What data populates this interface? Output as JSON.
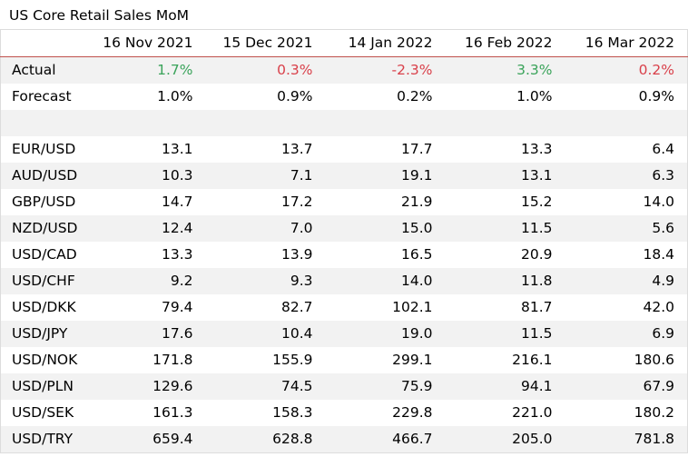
{
  "title": "US Core Retail Sales MoM",
  "colors": {
    "positive": "#3aa35a",
    "negative": "#d9404a",
    "header_rule": "#c0504d",
    "band": "#f2f2f2"
  },
  "chart_data": {
    "type": "table",
    "title": "US Core Retail Sales MoM",
    "columns": [
      "16 Nov 2021",
      "15 Dec 2021",
      "14 Jan 2022",
      "16 Feb 2022",
      "16 Mar 2022"
    ],
    "actual": {
      "label": "Actual",
      "values": [
        "1.7%",
        "0.3%",
        "-2.3%",
        "3.3%",
        "0.2%"
      ],
      "colors": [
        "positive",
        "negative",
        "negative",
        "positive",
        "negative"
      ]
    },
    "forecast": {
      "label": "Forecast",
      "values": [
        "1.0%",
        "0.9%",
        "0.2%",
        "1.0%",
        "0.9%"
      ]
    },
    "rows": [
      {
        "label": "EUR/USD",
        "values": [
          "13.1",
          "13.7",
          "17.7",
          "13.3",
          "6.4"
        ]
      },
      {
        "label": "AUD/USD",
        "values": [
          "10.3",
          "7.1",
          "19.1",
          "13.1",
          "6.3"
        ]
      },
      {
        "label": "GBP/USD",
        "values": [
          "14.7",
          "17.2",
          "21.9",
          "15.2",
          "14.0"
        ]
      },
      {
        "label": "NZD/USD",
        "values": [
          "12.4",
          "7.0",
          "15.0",
          "11.5",
          "5.6"
        ]
      },
      {
        "label": "USD/CAD",
        "values": [
          "13.3",
          "13.9",
          "16.5",
          "20.9",
          "18.4"
        ]
      },
      {
        "label": "USD/CHF",
        "values": [
          "9.2",
          "9.3",
          "14.0",
          "11.8",
          "4.9"
        ]
      },
      {
        "label": "USD/DKK",
        "values": [
          "79.4",
          "82.7",
          "102.1",
          "81.7",
          "42.0"
        ]
      },
      {
        "label": "USD/JPY",
        "values": [
          "17.6",
          "10.4",
          "19.0",
          "11.5",
          "6.9"
        ]
      },
      {
        "label": "USD/NOK",
        "values": [
          "171.8",
          "155.9",
          "299.1",
          "216.1",
          "180.6"
        ]
      },
      {
        "label": "USD/PLN",
        "values": [
          "129.6",
          "74.5",
          "75.9",
          "94.1",
          "67.9"
        ]
      },
      {
        "label": "USD/SEK",
        "values": [
          "161.3",
          "158.3",
          "229.8",
          "221.0",
          "180.2"
        ]
      },
      {
        "label": "USD/TRY",
        "values": [
          "659.4",
          "628.8",
          "466.7",
          "205.0",
          "781.8"
        ]
      }
    ]
  }
}
